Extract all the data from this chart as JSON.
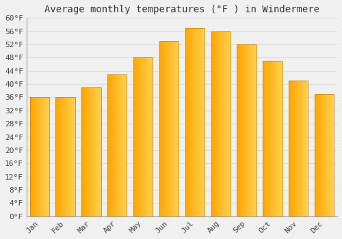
{
  "title": "Average monthly temperatures (°F ) in Windermere",
  "months": [
    "Jan",
    "Feb",
    "Mar",
    "Apr",
    "May",
    "Jun",
    "Jul",
    "Aug",
    "Sep",
    "Oct",
    "Nov",
    "Dec"
  ],
  "values": [
    36,
    36,
    39,
    43,
    48,
    53,
    57,
    56,
    52,
    47,
    41,
    37
  ],
  "bar_color_main": "#FFA500",
  "bar_color_light": "#FFD050",
  "bar_edge_color": "#CC8800",
  "background_color": "#f0f0f0",
  "grid_color": "#dddddd",
  "ylim_min": 0,
  "ylim_max": 60,
  "ytick_step": 4,
  "title_fontsize": 10,
  "tick_fontsize": 8,
  "font_family": "monospace"
}
